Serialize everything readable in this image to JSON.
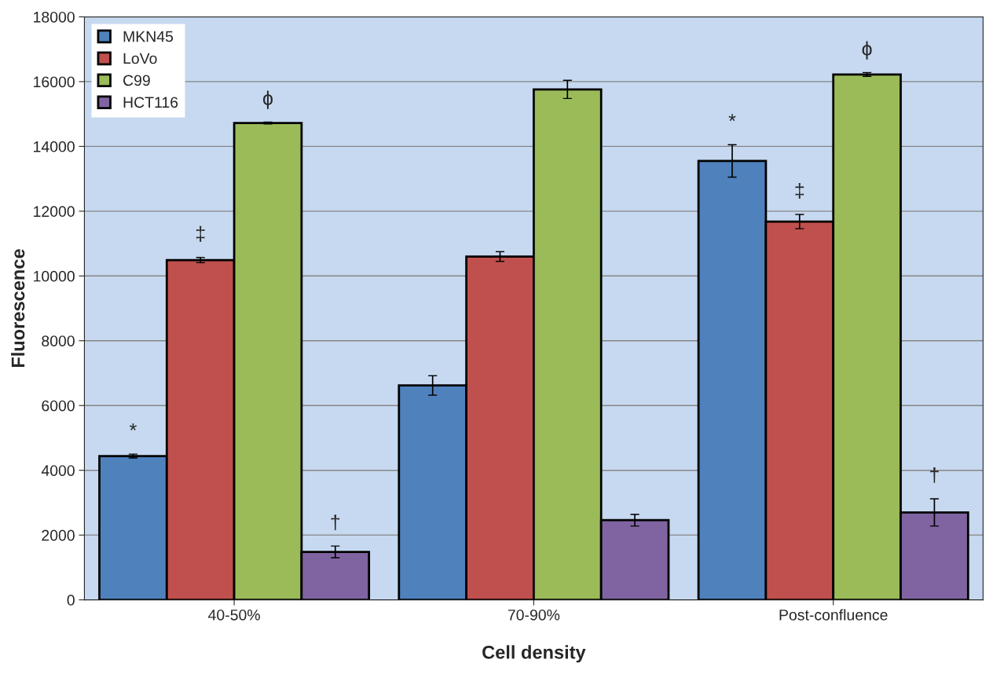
{
  "chart_data": {
    "type": "bar",
    "xlabel": "Cell density",
    "ylabel": "Fluorescence",
    "categories": [
      "40-50%",
      "70-90%",
      "Post-confluence"
    ],
    "series": [
      {
        "name": "MKN45",
        "color": "#4f81bd",
        "values": [
          4440,
          6620,
          13550
        ],
        "errors": [
          60,
          300,
          500
        ]
      },
      {
        "name": "LoVo",
        "color": "#c0504d",
        "values": [
          10490,
          10600,
          11680
        ],
        "errors": [
          80,
          150,
          220
        ]
      },
      {
        "name": "C99",
        "color": "#9bbb59",
        "values": [
          14720,
          15760,
          16220
        ],
        "errors": [
          30,
          280,
          60
        ]
      },
      {
        "name": "HCT116",
        "color": "#8064a2",
        "values": [
          1480,
          2460,
          2700
        ],
        "errors": [
          180,
          180,
          420
        ]
      }
    ],
    "annotations": [
      "*",
      "‡",
      "ϕ",
      "†",
      "*",
      "‡",
      "ϕ",
      "†"
    ],
    "ylim": [
      0,
      18000
    ],
    "yticks": [
      0,
      2000,
      4000,
      6000,
      8000,
      10000,
      12000,
      14000,
      16000,
      18000
    ],
    "grid": "y",
    "legend": "top left"
  }
}
